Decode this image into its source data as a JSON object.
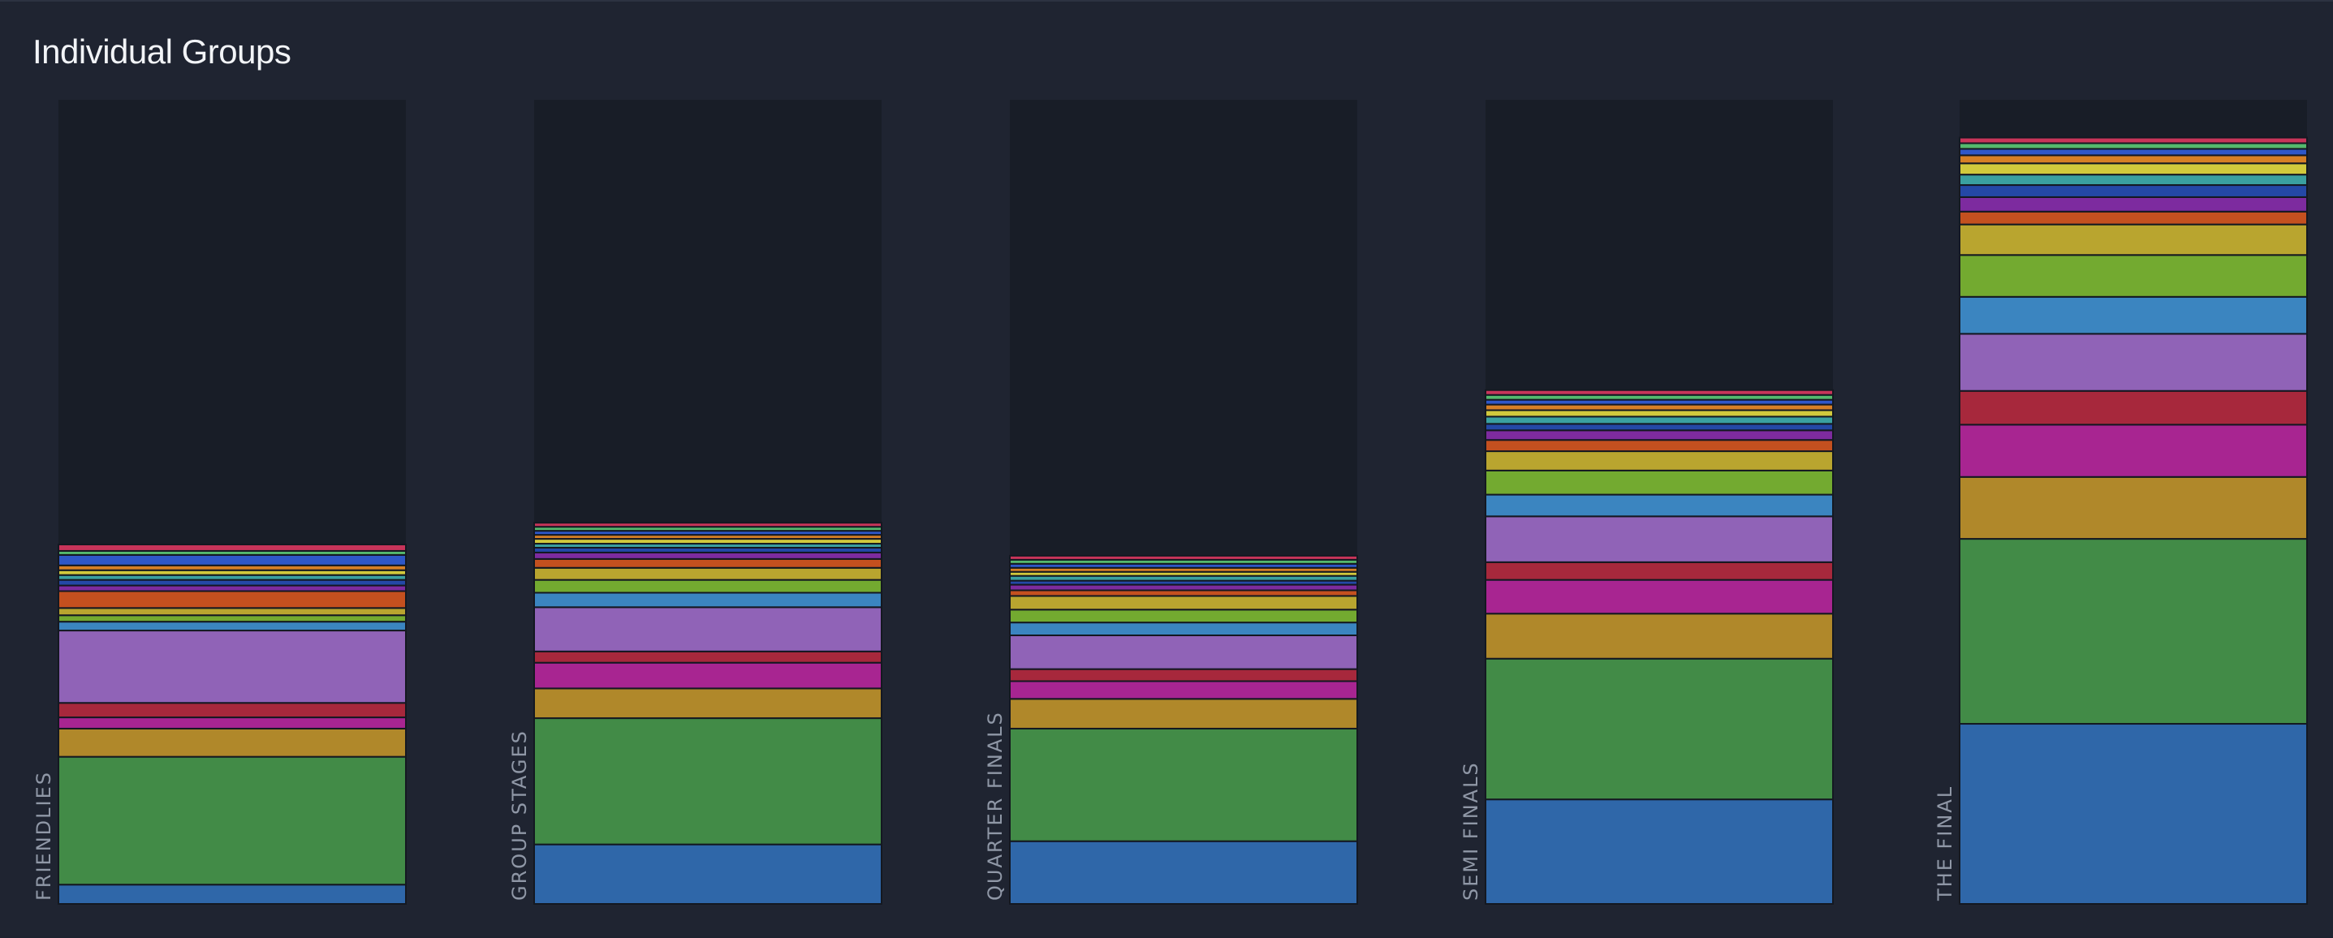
{
  "panel": {
    "title": "Individual Groups"
  },
  "chart_data": {
    "type": "bar",
    "stacked": true,
    "ylim": [
      0,
      100
    ],
    "grid": false,
    "legend": "none",
    "categories": [
      "FRIENDLIES",
      "GROUP STAGES",
      "QUARTER FINALS",
      "SEMI FINALS",
      "THE FINAL"
    ],
    "series": [
      {
        "color": "#2f67a9",
        "values": [
          2.4,
          7.4,
          7.8,
          13.0,
          22.4
        ]
      },
      {
        "color": "#428b47",
        "values": [
          15.9,
          15.7,
          14.0,
          17.5,
          23.0
        ]
      },
      {
        "color": "#b0882a",
        "values": [
          3.5,
          3.7,
          3.7,
          5.6,
          7.7
        ]
      },
      {
        "color": "#a82591",
        "values": [
          1.4,
          3.2,
          2.2,
          4.2,
          6.5
        ]
      },
      {
        "color": "#a7283c",
        "values": [
          1.8,
          1.4,
          1.5,
          2.2,
          4.2
        ]
      },
      {
        "color": "#9063b7",
        "values": [
          9.0,
          5.5,
          4.2,
          5.7,
          7.1
        ]
      },
      {
        "color": "#3b85c0",
        "values": [
          1.1,
          1.8,
          1.6,
          2.7,
          4.6
        ]
      },
      {
        "color": "#73aa30",
        "values": [
          0.8,
          1.6,
          1.6,
          3.0,
          5.2
        ]
      },
      {
        "color": "#b9a52f",
        "values": [
          0.9,
          1.5,
          1.7,
          2.4,
          3.8
        ]
      },
      {
        "color": "#c4501f",
        "values": [
          2.1,
          1.1,
          0.7,
          1.4,
          1.6
        ]
      },
      {
        "color": "#7d2b9f",
        "values": [
          0.7,
          0.8,
          0.7,
          1.2,
          1.8
        ]
      },
      {
        "color": "#2448a6",
        "values": [
          0.7,
          0.6,
          0.5,
          0.8,
          1.5
        ]
      },
      {
        "color": "#3aa0a0",
        "values": [
          0.6,
          0.5,
          0.6,
          0.9,
          1.3
        ]
      },
      {
        "color": "#d1c93c",
        "values": [
          0.6,
          0.6,
          0.5,
          0.8,
          1.4
        ]
      },
      {
        "color": "#d67f25",
        "values": [
          0.6,
          0.5,
          0.5,
          0.7,
          1.0
        ]
      },
      {
        "color": "#2e57c8",
        "values": [
          1.3,
          0.5,
          0.5,
          0.6,
          0.8
        ]
      },
      {
        "color": "#55b86d",
        "values": [
          0.5,
          0.5,
          0.5,
          0.6,
          0.7
        ]
      },
      {
        "color": "#c8345a",
        "values": [
          0.8,
          0.5,
          0.5,
          0.6,
          0.7
        ]
      }
    ]
  }
}
